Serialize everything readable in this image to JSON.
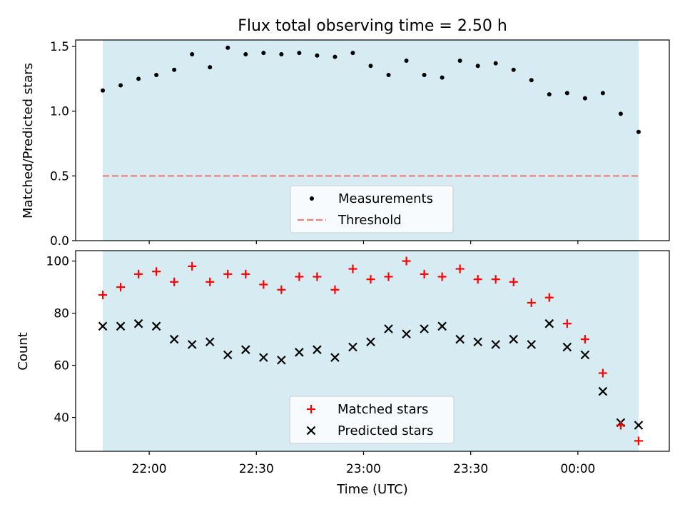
{
  "chart_data": {
    "title": "Flux total observing time = 2.50 h",
    "xlabel": "Time (UTC)",
    "x_ticks": [
      "22:00",
      "22:30",
      "23:00",
      "23:30",
      "00:00"
    ],
    "x_unit": "minutes after 21:00 UTC",
    "shaded_interval": [
      "21:47",
      "00:17"
    ],
    "colors": {
      "shade": "#add8e6",
      "measurements": "#000000",
      "threshold": "#f08080",
      "matched": "#ff0000",
      "predicted": "#000000"
    },
    "panels": [
      {
        "type": "scatter",
        "ylabel": "Matched/Predicted stars",
        "ylim": [
          0,
          1.55
        ],
        "yticks": [
          "0.0",
          "0.5",
          "1.0",
          "1.5"
        ],
        "legend": {
          "placement": "lower center",
          "entries": [
            "Measurements",
            "Threshold"
          ]
        },
        "threshold": 0.5,
        "series": [
          {
            "name": "Measurements",
            "marker": "dot",
            "x": [
              "21:47",
              "21:52",
              "21:57",
              "22:02",
              "22:07",
              "22:12",
              "22:17",
              "22:22",
              "22:27",
              "22:32",
              "22:37",
              "22:42",
              "22:47",
              "22:52",
              "22:57",
              "23:02",
              "23:07",
              "23:12",
              "23:17",
              "23:22",
              "23:27",
              "23:32",
              "23:37",
              "23:42",
              "23:47",
              "23:52",
              "23:57",
              "00:02",
              "00:07",
              "00:12",
              "00:17"
            ],
            "y": [
              1.16,
              1.2,
              1.25,
              1.28,
              1.32,
              1.44,
              1.34,
              1.49,
              1.44,
              1.45,
              1.44,
              1.45,
              1.43,
              1.42,
              1.45,
              1.35,
              1.28,
              1.39,
              1.28,
              1.26,
              1.39,
              1.35,
              1.37,
              1.32,
              1.24,
              1.13,
              1.14,
              1.1,
              1.14,
              0.98,
              0.84
            ]
          }
        ]
      },
      {
        "type": "scatter",
        "ylabel": "Count",
        "ylim": [
          27,
          104
        ],
        "yticks": [
          "40",
          "60",
          "80",
          "100"
        ],
        "legend": {
          "placement": "lower center",
          "entries": [
            "Matched stars",
            "Predicted stars"
          ]
        },
        "series": [
          {
            "name": "Matched stars",
            "marker": "plus",
            "x": [
              "21:47",
              "21:52",
              "21:57",
              "22:02",
              "22:07",
              "22:12",
              "22:17",
              "22:22",
              "22:27",
              "22:32",
              "22:37",
              "22:42",
              "22:47",
              "22:52",
              "22:57",
              "23:02",
              "23:07",
              "23:12",
              "23:17",
              "23:22",
              "23:27",
              "23:32",
              "23:37",
              "23:42",
              "23:47",
              "23:52",
              "23:57",
              "00:02",
              "00:07",
              "00:12",
              "00:17"
            ],
            "y": [
              87,
              90,
              95,
              96,
              92,
              98,
              92,
              95,
              95,
              91,
              89,
              94,
              94,
              89,
              97,
              93,
              94,
              100,
              95,
              94,
              97,
              93,
              93,
              92,
              84,
              86,
              76,
              70,
              57,
              37,
              31
            ]
          },
          {
            "name": "Predicted stars",
            "marker": "x",
            "x": [
              "21:47",
              "21:52",
              "21:57",
              "22:02",
              "22:07",
              "22:12",
              "22:17",
              "22:22",
              "22:27",
              "22:32",
              "22:37",
              "22:42",
              "22:47",
              "22:52",
              "22:57",
              "23:02",
              "23:07",
              "23:12",
              "23:17",
              "23:22",
              "23:27",
              "23:32",
              "23:37",
              "23:42",
              "23:47",
              "23:52",
              "23:57",
              "00:02",
              "00:07",
              "00:12",
              "00:17"
            ],
            "y": [
              75,
              75,
              76,
              75,
              70,
              68,
              69,
              64,
              66,
              63,
              62,
              65,
              66,
              63,
              67,
              69,
              74,
              72,
              74,
              75,
              70,
              69,
              68,
              70,
              68,
              76,
              67,
              64,
              50,
              38,
              37
            ]
          }
        ]
      }
    ]
  }
}
